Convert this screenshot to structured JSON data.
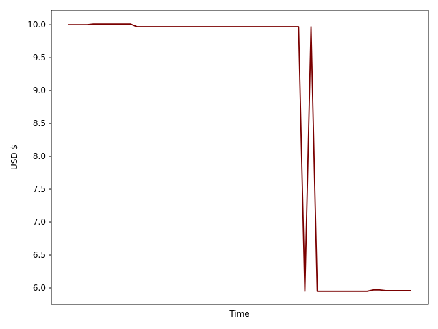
{
  "chart_data": {
    "type": "line",
    "title": "",
    "xlabel": "Time",
    "ylabel": "USD $",
    "x_ticks_visible": false,
    "ylim": [
      5.75,
      10.22
    ],
    "yticks": [
      6.0,
      6.5,
      7.0,
      7.5,
      8.0,
      8.5,
      9.0,
      9.5,
      10.0
    ],
    "ytick_labels": [
      "6.0",
      "6.5",
      "7.0",
      "7.5",
      "8.0",
      "8.5",
      "9.0",
      "9.5",
      "10.0"
    ],
    "grid": false,
    "legend": "none",
    "series": [
      {
        "color": "#7a0000",
        "values": [
          10.0,
          10.0,
          10.0,
          10.0,
          10.01,
          10.01,
          10.01,
          10.01,
          10.01,
          10.01,
          10.01,
          9.97,
          9.97,
          9.97,
          9.97,
          9.97,
          9.97,
          9.97,
          9.97,
          9.97,
          9.97,
          9.97,
          9.97,
          9.97,
          9.97,
          9.97,
          9.97,
          9.97,
          9.97,
          9.97,
          9.97,
          9.97,
          9.97,
          9.97,
          9.97,
          9.97,
          9.97,
          9.97,
          5.95,
          9.97,
          5.95,
          5.95,
          5.95,
          5.95,
          5.95,
          5.95,
          5.95,
          5.95,
          5.95,
          5.97,
          5.97,
          5.96,
          5.96,
          5.96,
          5.96,
          5.96
        ]
      }
    ]
  }
}
